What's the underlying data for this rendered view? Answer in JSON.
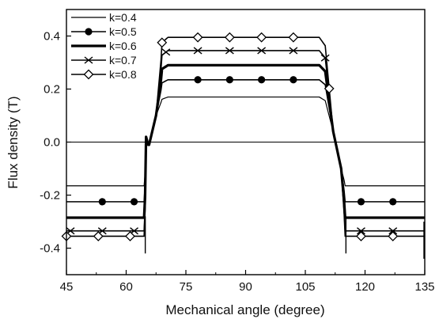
{
  "chart_data": {
    "type": "line",
    "title": "",
    "xlabel": "Mechanical angle (degree)",
    "ylabel": "Flux density (T)",
    "xlim": [
      45,
      135
    ],
    "ylim": [
      -0.5,
      0.5
    ],
    "xticks": [
      45,
      60,
      75,
      90,
      105,
      120,
      135
    ],
    "yticks": [
      -0.4,
      -0.2,
      0.0,
      0.2,
      0.4
    ],
    "ytick_labels": [
      "-0.4",
      "-0.2",
      "0.0",
      "0.2",
      "0.4"
    ],
    "grid": false,
    "zero_line": true,
    "legend_position": "top-left",
    "series": [
      {
        "name": "k=0.4",
        "marker": "none",
        "line_weight": "thin",
        "plateau": 0.17,
        "trough": -0.165,
        "marker_x": []
      },
      {
        "name": "k=0.5",
        "marker": "filled-circle",
        "line_weight": "normal",
        "plateau": 0.235,
        "trough": -0.225,
        "marker_x": [
          54,
          62,
          78,
          86,
          94,
          102,
          119,
          127
        ]
      },
      {
        "name": "k=0.6",
        "marker": "none",
        "line_weight": "bold",
        "plateau": 0.29,
        "trough": -0.285,
        "marker_x": []
      },
      {
        "name": "k=0.7",
        "marker": "x",
        "line_weight": "normal",
        "plateau": 0.345,
        "trough": -0.335,
        "marker_x": [
          46,
          54,
          62,
          70,
          78,
          86,
          94,
          102,
          110,
          119,
          127
        ]
      },
      {
        "name": "k=0.8",
        "marker": "open-diamond",
        "line_weight": "normal",
        "plateau": 0.395,
        "trough": -0.355,
        "marker_x": [
          45,
          53,
          61,
          69,
          78,
          86,
          94,
          102,
          111,
          119,
          127
        ]
      }
    ]
  }
}
